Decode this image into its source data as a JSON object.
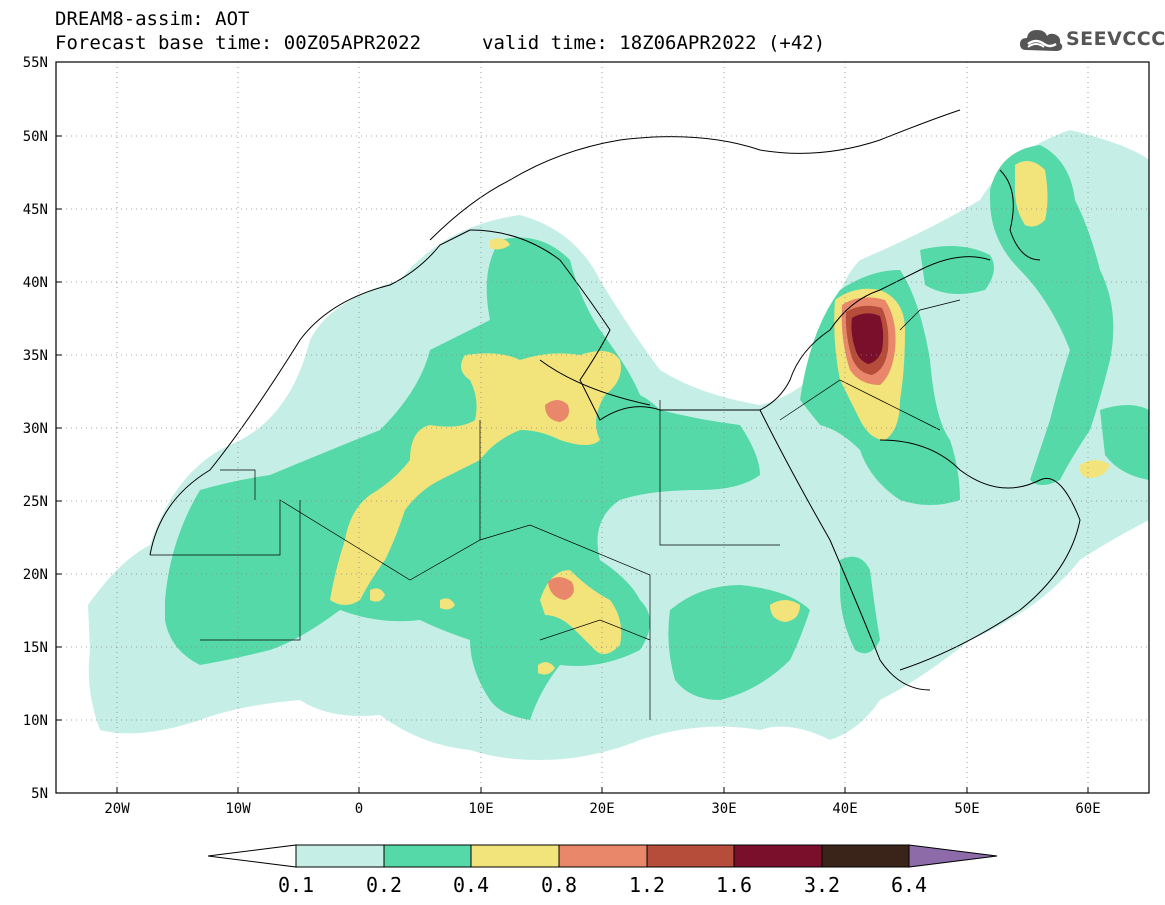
{
  "header": {
    "line1": "DREAM8-assim: AOT",
    "base_time_label": "Forecast base time: 00Z05APR2022",
    "valid_time_label": "valid time: 18Z06APR2022 (+42)"
  },
  "logo": {
    "text": "SEEVCCC",
    "icon": "cloud-icon"
  },
  "map": {
    "lon_range": [
      -25,
      65
    ],
    "lat_range": [
      5,
      55
    ],
    "grid": "dotted",
    "lat_labels": [
      "55N",
      "50N",
      "45N",
      "40N",
      "35N",
      "30N",
      "25N",
      "20N",
      "15N",
      "10N",
      "5N"
    ],
    "lon_labels": [
      "20W",
      "10W",
      "0",
      "10E",
      "20E",
      "30E",
      "40E",
      "50E",
      "60E"
    ]
  },
  "colorbar": {
    "labels": [
      "0.1",
      "0.2",
      "0.4",
      "0.8",
      "1.2",
      "1.6",
      "3.2",
      "6.4"
    ],
    "colors": [
      "#ffffff",
      "#c5efe6",
      "#56d9a8",
      "#f2e47a",
      "#e8876a",
      "#b54d3a",
      "#7a0f2b",
      "#3a2318",
      "#8d6ba8"
    ]
  }
}
